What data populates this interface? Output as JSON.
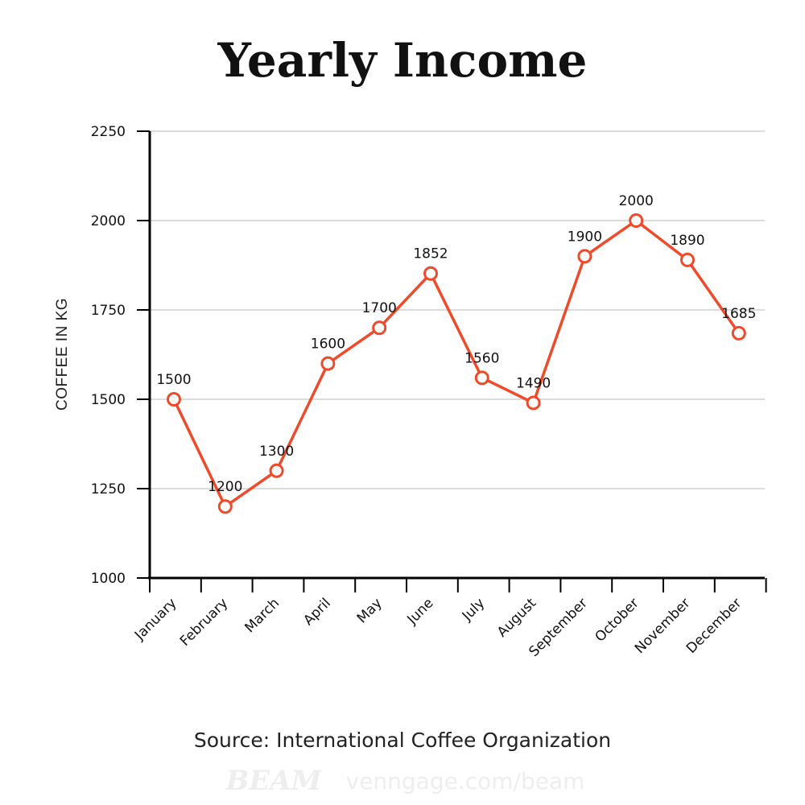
{
  "chart_data": {
    "type": "line",
    "title": "Yearly Income",
    "ylabel": "COFFEE IN KG",
    "xlabel": "",
    "categories": [
      "January",
      "February",
      "March",
      "April",
      "May",
      "June",
      "July",
      "August",
      "September",
      "October",
      "November",
      "December"
    ],
    "series": [
      {
        "values": [
          1500,
          1200,
          1300,
          1600,
          1700,
          1852,
          1560,
          1490,
          1900,
          2000,
          1890,
          1685
        ],
        "color": "#ef4b2b"
      }
    ],
    "ylim": [
      1000,
      2250
    ],
    "yticks": [
      1000,
      1250,
      1500,
      1750,
      2000,
      2250
    ],
    "grid": true,
    "data_labels": true
  },
  "footer": {
    "source": "Source: International Coffee Organization",
    "watermark_logo": "BEAM",
    "watermark_url": "venngage.com/beam"
  },
  "colors": {
    "line": "#ef4b2b",
    "grid": "#d0d0d0",
    "axis": "#000000"
  }
}
